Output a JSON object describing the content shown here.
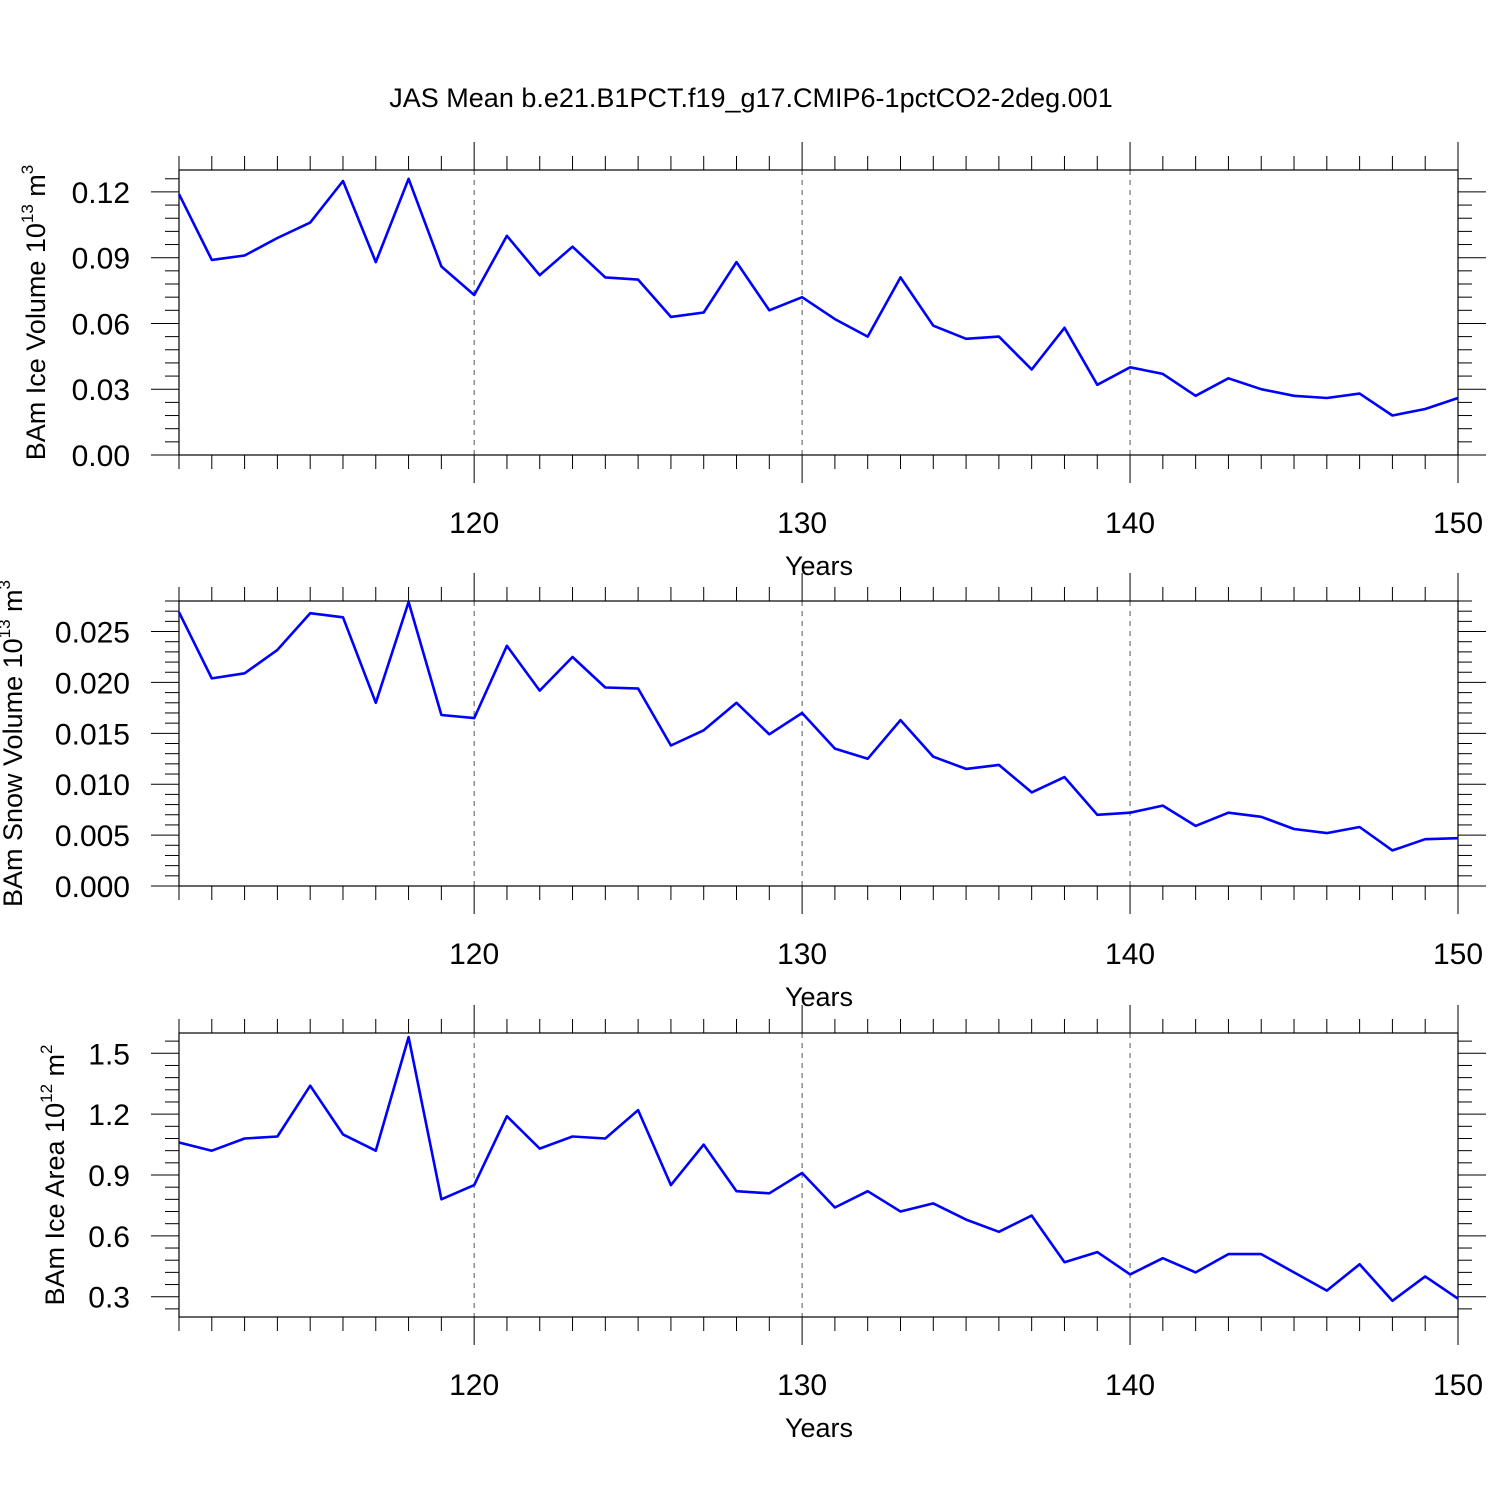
{
  "figure_title": "JAS Mean b.e21.B1PCT.f19_g17.CMIP6-1pctCO2-2deg.001",
  "line_color": "#0000ff",
  "chart_data": [
    {
      "type": "line",
      "name": "ice-volume",
      "ylabel": {
        "main": "BAm Ice Volume 10",
        "exp": "13",
        "unit": " m",
        "unit_exp": "3"
      },
      "xlabel": "Years",
      "xlim": [
        111,
        150
      ],
      "ylim": [
        0.0,
        0.13
      ],
      "xticks": [
        "120",
        "130",
        "140",
        "150"
      ],
      "yticks": [
        "0.00",
        "0.03",
        "0.06",
        "0.09",
        "0.12"
      ],
      "x": [
        111,
        112,
        113,
        114,
        115,
        116,
        117,
        118,
        119,
        120,
        121,
        122,
        123,
        124,
        125,
        126,
        127,
        128,
        129,
        130,
        131,
        132,
        133,
        134,
        135,
        136,
        137,
        138,
        139,
        140,
        141,
        142,
        143,
        144,
        145,
        146,
        147,
        148,
        149,
        150
      ],
      "values": [
        0.119,
        0.089,
        0.091,
        0.099,
        0.106,
        0.125,
        0.088,
        0.126,
        0.086,
        0.073,
        0.1,
        0.082,
        0.095,
        0.081,
        0.08,
        0.063,
        0.065,
        0.088,
        0.066,
        0.072,
        0.062,
        0.054,
        0.081,
        0.059,
        0.053,
        0.054,
        0.039,
        0.058,
        0.032,
        0.04,
        0.037,
        0.027,
        0.035,
        0.03,
        0.027,
        0.026,
        0.028,
        0.018,
        0.021,
        0.026
      ]
    },
    {
      "type": "line",
      "name": "snow-volume",
      "ylabel": {
        "main": "BAm Snow Volume 10",
        "exp": "13",
        "unit": " m",
        "unit_exp": "3"
      },
      "xlabel": "Years",
      "xlim": [
        111,
        150
      ],
      "ylim": [
        0.0,
        0.028
      ],
      "xticks": [
        "120",
        "130",
        "140",
        "150"
      ],
      "yticks": [
        "0.000",
        "0.005",
        "0.010",
        "0.015",
        "0.020",
        "0.025"
      ],
      "x": [
        111,
        112,
        113,
        114,
        115,
        116,
        117,
        118,
        119,
        120,
        121,
        122,
        123,
        124,
        125,
        126,
        127,
        128,
        129,
        130,
        131,
        132,
        133,
        134,
        135,
        136,
        137,
        138,
        139,
        140,
        141,
        142,
        143,
        144,
        145,
        146,
        147,
        148,
        149,
        150
      ],
      "values": [
        0.0269,
        0.0204,
        0.0209,
        0.0232,
        0.0268,
        0.0264,
        0.018,
        0.0279,
        0.0168,
        0.0165,
        0.0236,
        0.0192,
        0.0225,
        0.0195,
        0.0194,
        0.0138,
        0.0153,
        0.018,
        0.0149,
        0.017,
        0.0135,
        0.0125,
        0.0163,
        0.0127,
        0.0115,
        0.0119,
        0.0092,
        0.0107,
        0.007,
        0.0072,
        0.0079,
        0.0059,
        0.0072,
        0.0068,
        0.0056,
        0.0052,
        0.0058,
        0.0035,
        0.0046,
        0.0047
      ]
    },
    {
      "type": "line",
      "name": "ice-area",
      "ylabel": {
        "main": "BAm Ice Area 10",
        "exp": "12",
        "unit": " m",
        "unit_exp": "2"
      },
      "xlabel": "Years",
      "xlim": [
        111,
        150
      ],
      "ylim": [
        0.2,
        1.6
      ],
      "xticks": [
        "120",
        "130",
        "140",
        "150"
      ],
      "yticks": [
        "0.3",
        "0.6",
        "0.9",
        "1.2",
        "1.5"
      ],
      "x": [
        111,
        112,
        113,
        114,
        115,
        116,
        117,
        118,
        119,
        120,
        121,
        122,
        123,
        124,
        125,
        126,
        127,
        128,
        129,
        130,
        131,
        132,
        133,
        134,
        135,
        136,
        137,
        138,
        139,
        140,
        141,
        142,
        143,
        144,
        145,
        146,
        147,
        148,
        149,
        150
      ],
      "values": [
        1.06,
        1.02,
        1.08,
        1.09,
        1.34,
        1.1,
        1.02,
        1.58,
        0.78,
        0.85,
        1.19,
        1.03,
        1.09,
        1.08,
        1.22,
        0.85,
        1.05,
        0.82,
        0.81,
        0.91,
        0.74,
        0.82,
        0.72,
        0.76,
        0.68,
        0.62,
        0.7,
        0.47,
        0.52,
        0.41,
        0.49,
        0.42,
        0.51,
        0.51,
        0.42,
        0.33,
        0.46,
        0.28,
        0.4,
        0.29
      ]
    }
  ]
}
